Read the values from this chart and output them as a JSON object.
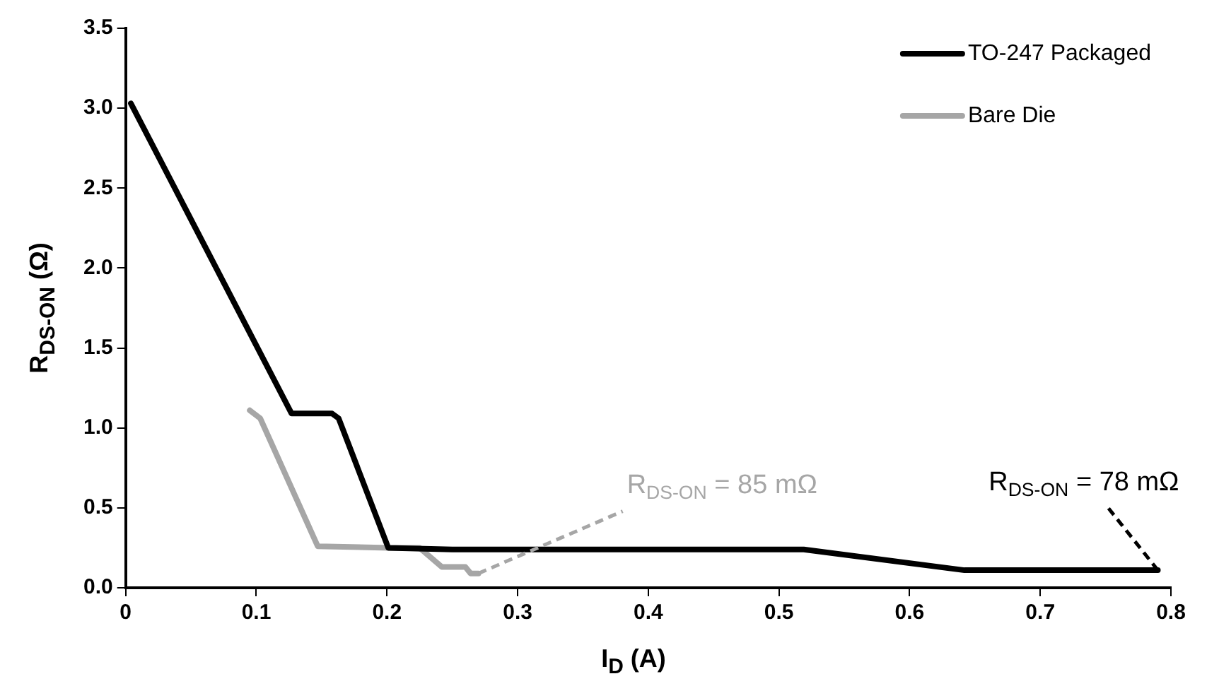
{
  "chart_data": {
    "type": "line",
    "xlabel": "I$_{D}$ (A)",
    "ylabel": "R$_{DS-ON}$ (Ω)",
    "xlim": [
      0,
      0.8
    ],
    "xticks": [
      0,
      0.1,
      0.2,
      0.3,
      0.4,
      0.5,
      0.6,
      0.7,
      0.8
    ],
    "ylim": [
      0,
      3.5
    ],
    "yticks": [
      {
        "value": 0,
        "label": "0.0"
      },
      {
        "value": 0.5,
        "label": "0.5"
      },
      {
        "value": 1,
        "label": "1.0"
      },
      {
        "value": 1.5,
        "label": "1.5"
      },
      {
        "value": 2,
        "label": "2.0"
      },
      {
        "value": 2.5,
        "label": "2.5"
      },
      {
        "value": 3,
        "label": "3.0"
      },
      {
        "value": 3.5,
        "label": "3.5"
      }
    ],
    "grid": false,
    "legend": "top right",
    "marker": "none",
    "line_style": "solid",
    "series": [
      {
        "name": "TO-247 Packaged",
        "color": "#000000",
        "x": [
          0.004,
          0.127,
          0.158,
          0.163,
          0.201,
          0.25,
          0.4,
          0.519,
          0.642,
          0.79
        ],
        "values": [
          3.03,
          1.09,
          1.09,
          1.06,
          0.25,
          0.24,
          0.24,
          0.24,
          0.11,
          0.11
        ]
      },
      {
        "name": "Bare Die",
        "color": "#a6a6a6",
        "x": [
          0.095,
          0.103,
          0.147,
          0.202,
          0.225,
          0.242,
          0.26,
          0.264,
          0.27
        ],
        "values": [
          1.11,
          1.06,
          0.26,
          0.25,
          0.25,
          0.13,
          0.13,
          0.09,
          0.09
        ]
      }
    ],
    "annotations": [
      {
        "text": "R$_{DS-ON}$ = 85 mΩ",
        "x": 0.27,
        "y": 0.09
      },
      {
        "text": "R$_{DS-ON}$ = 78 mΩ",
        "x": 0.79,
        "y": 0.11
      }
    ]
  }
}
